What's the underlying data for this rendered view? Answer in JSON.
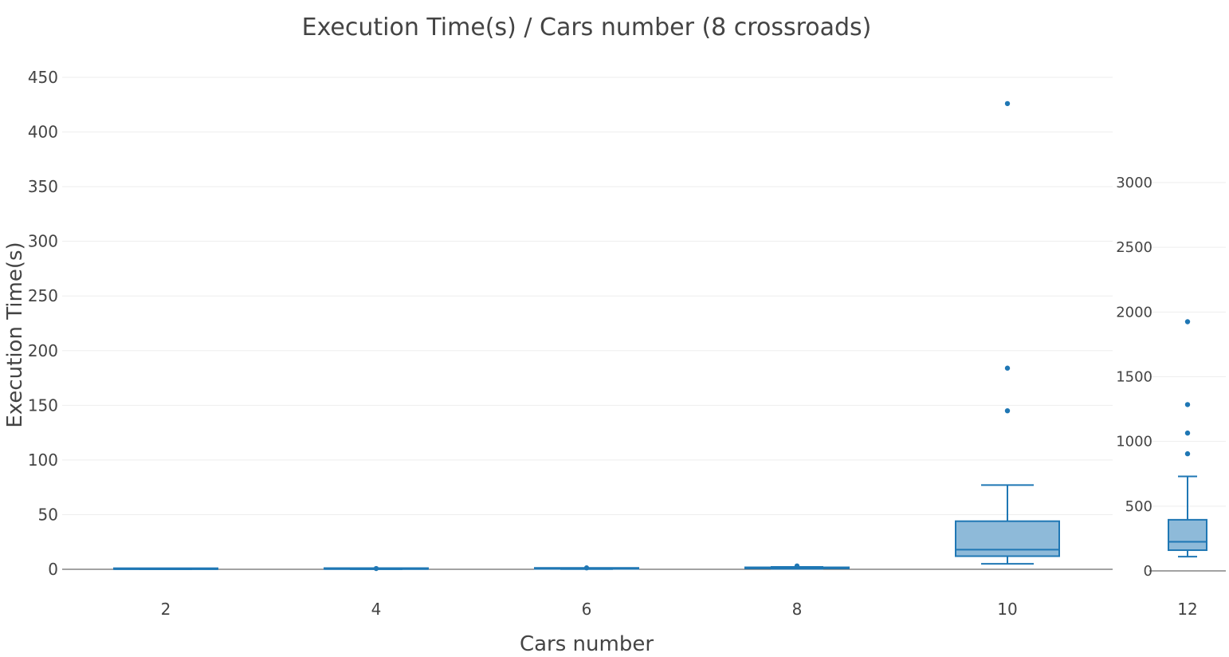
{
  "chart_data": {
    "type": "box",
    "title": "Execution Time(s) / Cars number (8 crossroads)",
    "xlabel": "Cars number",
    "ylabel": "Execution Time(s)",
    "categories": [
      "2",
      "4",
      "6",
      "8",
      "10",
      "12"
    ],
    "color": "#1f77b4",
    "fill": "#8ebad9",
    "main_axis": {
      "ylim": [
        0,
        450
      ],
      "ticks": [
        0,
        50,
        100,
        150,
        200,
        250,
        300,
        350,
        400,
        450
      ],
      "tick_labels": [
        "0",
        "50",
        "100",
        "150",
        "200",
        "250",
        "300",
        "350",
        "400",
        "450"
      ]
    },
    "inset_axis": {
      "ylim": [
        0,
        3000
      ],
      "ticks": [
        0,
        500,
        1000,
        1500,
        2000,
        2500,
        3000
      ],
      "tick_labels": [
        "0",
        "500",
        "1000",
        "1500",
        "2000",
        "2500",
        "3000"
      ]
    },
    "boxes": [
      {
        "category": "2",
        "axis": "main",
        "min": 0.05,
        "q1": 0.1,
        "median": 0.15,
        "q3": 0.2,
        "max": 0.3,
        "outliers": []
      },
      {
        "category": "4",
        "axis": "main",
        "min": 0.1,
        "q1": 0.2,
        "median": 0.3,
        "q3": 0.4,
        "max": 0.5,
        "outliers": [
          0.7
        ]
      },
      {
        "category": "6",
        "axis": "main",
        "min": 0.2,
        "q1": 0.4,
        "median": 0.6,
        "q3": 0.8,
        "max": 1.0,
        "outliers": [
          1.3
        ]
      },
      {
        "category": "8",
        "axis": "main",
        "min": 0.5,
        "q1": 0.8,
        "median": 1.2,
        "q3": 1.8,
        "max": 2.2,
        "outliers": [
          3.0
        ]
      },
      {
        "category": "10",
        "axis": "main",
        "min": 5,
        "q1": 12,
        "median": 18,
        "q3": 44,
        "max": 77,
        "outliers": [
          145,
          184,
          426
        ]
      },
      {
        "category": "12",
        "axis": "inset",
        "min": 110,
        "q1": 160,
        "median": 225,
        "q3": 395,
        "max": 730,
        "outliers": [
          905,
          1065,
          1285,
          1925
        ]
      }
    ]
  }
}
